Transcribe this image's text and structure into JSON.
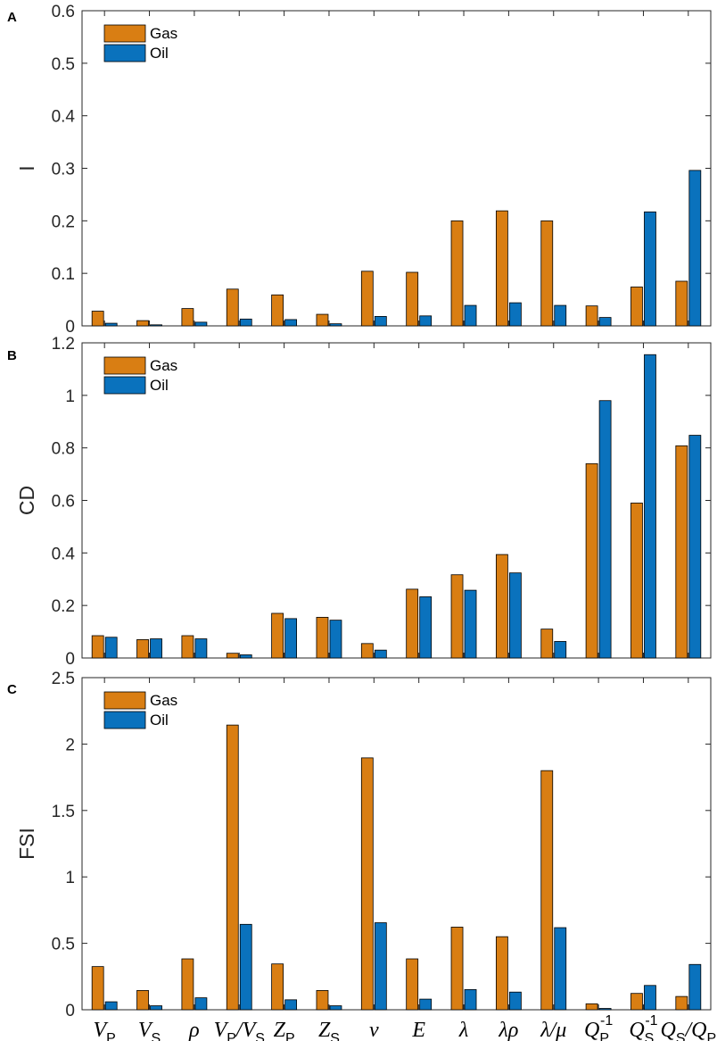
{
  "colors": {
    "gas": "#D97E13",
    "oil": "#0A72BD",
    "axis": "#262626"
  },
  "legend": {
    "gas_label": "Gas",
    "oil_label": "Oil"
  },
  "categories": [
    {
      "id": "vp",
      "parts": [
        [
          "V",
          "it"
        ],
        [
          "P",
          "sub"
        ]
      ]
    },
    {
      "id": "vs",
      "parts": [
        [
          "V",
          "it"
        ],
        [
          "S",
          "sub"
        ]
      ]
    },
    {
      "id": "rho",
      "parts": [
        [
          "ρ",
          "it"
        ]
      ]
    },
    {
      "id": "vp-vs",
      "parts": [
        [
          "V",
          "it"
        ],
        [
          "P",
          "sub"
        ],
        [
          "/",
          "it"
        ],
        [
          "V",
          "it"
        ],
        [
          "S",
          "sub"
        ]
      ]
    },
    {
      "id": "zp",
      "parts": [
        [
          "Z",
          "it"
        ],
        [
          "P",
          "sub"
        ]
      ]
    },
    {
      "id": "zs",
      "parts": [
        [
          "Z",
          "it"
        ],
        [
          "S",
          "sub"
        ]
      ]
    },
    {
      "id": "nu",
      "parts": [
        [
          "ν",
          "it"
        ]
      ]
    },
    {
      "id": "e",
      "parts": [
        [
          "E",
          "it"
        ]
      ]
    },
    {
      "id": "lambda",
      "parts": [
        [
          "λ",
          "it"
        ]
      ]
    },
    {
      "id": "lambda-rho",
      "parts": [
        [
          "λρ",
          "it"
        ]
      ]
    },
    {
      "id": "lambda-mu",
      "parts": [
        [
          "λ/μ",
          "it"
        ]
      ]
    },
    {
      "id": "qp-inv",
      "parts": [
        [
          "Q",
          "it"
        ],
        [
          "P",
          "sub"
        ],
        [
          "-1",
          "sup"
        ]
      ]
    },
    {
      "id": "qs-inv",
      "parts": [
        [
          "Q",
          "it"
        ],
        [
          "S",
          "sub"
        ],
        [
          "-1",
          "sup"
        ]
      ]
    },
    {
      "id": "qs-qp",
      "parts": [
        [
          "Q",
          "it"
        ],
        [
          "S",
          "sub"
        ],
        [
          "/",
          "it"
        ],
        [
          "Q",
          "it"
        ],
        [
          "P",
          "sub"
        ]
      ]
    }
  ],
  "chart_data": [
    {
      "type": "bar",
      "panel": "A",
      "ylabel": "I",
      "ylim": [
        0,
        0.6
      ],
      "yticks": [
        "0",
        "0.1",
        "0.2",
        "0.3",
        "0.4",
        "0.5",
        "0.6"
      ],
      "yticks_values": [
        0,
        0.1,
        0.2,
        0.3,
        0.4,
        0.5,
        0.6
      ],
      "categories": [
        "VP",
        "VS",
        "ρ",
        "VP/VS",
        "ZP",
        "ZS",
        "ν",
        "E",
        "λ",
        "λρ",
        "λ/μ",
        "QP-1",
        "QS-1",
        "QS/QP"
      ],
      "series": [
        {
          "name": "Gas",
          "values": [
            0.028,
            0.01,
            0.033,
            0.07,
            0.059,
            0.022,
            0.104,
            0.102,
            0.2,
            0.219,
            0.2,
            0.038,
            0.074,
            0.085
          ]
        },
        {
          "name": "Oil",
          "values": [
            0.005,
            0.002,
            0.007,
            0.013,
            0.012,
            0.004,
            0.018,
            0.019,
            0.039,
            0.044,
            0.039,
            0.016,
            0.217,
            0.296
          ]
        }
      ],
      "legend_position": "top-left"
    },
    {
      "type": "bar",
      "panel": "B",
      "ylabel": "CD",
      "ylim": [
        0,
        1.2
      ],
      "yticks": [
        "0",
        "0.2",
        "0.4",
        "0.6",
        "0.8",
        "1",
        "1.2"
      ],
      "yticks_values": [
        0,
        0.2,
        0.4,
        0.6,
        0.8,
        1.0,
        1.2
      ],
      "categories": [
        "VP",
        "VS",
        "ρ",
        "VP/VS",
        "ZP",
        "ZS",
        "ν",
        "E",
        "λ",
        "λρ",
        "λ/μ",
        "QP-1",
        "QS-1",
        "QS/QP"
      ],
      "series": [
        {
          "name": "Gas",
          "values": [
            0.085,
            0.07,
            0.085,
            0.018,
            0.17,
            0.155,
            0.055,
            0.262,
            0.317,
            0.394,
            0.11,
            0.74,
            0.59,
            0.808
          ]
        },
        {
          "name": "Oil",
          "values": [
            0.079,
            0.073,
            0.073,
            0.012,
            0.15,
            0.144,
            0.03,
            0.233,
            0.258,
            0.324,
            0.063,
            0.98,
            1.155,
            0.848
          ]
        }
      ],
      "legend_position": "top-left"
    },
    {
      "type": "bar",
      "panel": "C",
      "ylabel": "FSI",
      "ylim": [
        0,
        2.5
      ],
      "yticks": [
        "0",
        "0.5",
        "1",
        "1.5",
        "2",
        "2.5"
      ],
      "yticks_values": [
        0,
        0.5,
        1.0,
        1.5,
        2.0,
        2.5
      ],
      "categories": [
        "VP",
        "VS",
        "ρ",
        "VP/VS",
        "ZP",
        "ZS",
        "ν",
        "E",
        "λ",
        "λρ",
        "λ/μ",
        "QP-1",
        "QS-1",
        "QS/QP"
      ],
      "series": [
        {
          "name": "Gas",
          "values": [
            0.325,
            0.145,
            0.383,
            2.143,
            0.345,
            0.145,
            1.896,
            0.383,
            0.622,
            0.55,
            1.8,
            0.045,
            0.123,
            0.1
          ]
        },
        {
          "name": "Oil",
          "values": [
            0.06,
            0.03,
            0.09,
            0.643,
            0.075,
            0.03,
            0.655,
            0.08,
            0.152,
            0.133,
            0.618,
            0.01,
            0.183,
            0.341
          ]
        }
      ],
      "legend_position": "top-left"
    }
  ]
}
